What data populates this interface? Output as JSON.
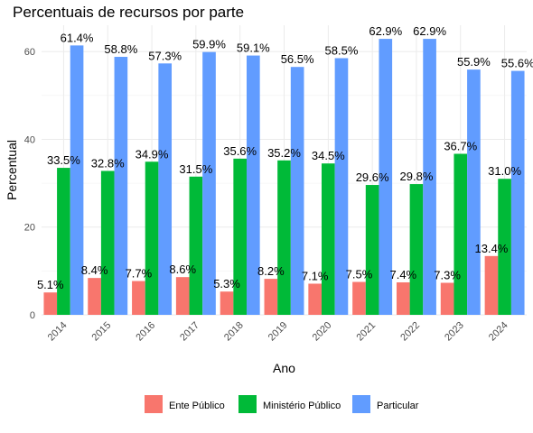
{
  "chart_data": {
    "type": "bar",
    "title": "Percentuais de recursos por parte",
    "xlabel": "Ano",
    "ylabel": "Percentual",
    "ylim": [
      0,
      66
    ],
    "yticks": [
      0,
      20,
      40,
      60
    ],
    "grid": true,
    "legend_position": "bottom",
    "categories": [
      "2014",
      "2015",
      "2016",
      "2017",
      "2018",
      "2019",
      "2020",
      "2021",
      "2022",
      "2023",
      "2024"
    ],
    "series": [
      {
        "name": "Ente Público",
        "color": "#F8766D",
        "values": [
          5.1,
          8.4,
          7.7,
          8.6,
          5.3,
          8.2,
          7.1,
          7.5,
          7.4,
          7.3,
          13.4
        ],
        "labels": [
          "5.1%",
          "8.4%",
          "7.7%",
          "8.6%",
          "5.3%",
          "8.2%",
          "7.1%",
          "7.5%",
          "7.4%",
          "7.3%",
          "13.4%"
        ]
      },
      {
        "name": "Ministério Público",
        "color": "#00BA38",
        "values": [
          33.5,
          32.8,
          34.9,
          31.5,
          35.6,
          35.2,
          34.5,
          29.6,
          29.8,
          36.7,
          31.0
        ],
        "labels": [
          "33.5%",
          "32.8%",
          "34.9%",
          "31.5%",
          "35.6%",
          "35.2%",
          "34.5%",
          "29.6%",
          "29.8%",
          "36.7%",
          "31.0%"
        ]
      },
      {
        "name": "Particular",
        "color": "#619CFF",
        "values": [
          61.4,
          58.8,
          57.3,
          59.9,
          59.1,
          56.5,
          58.5,
          62.9,
          62.9,
          55.9,
          55.6
        ],
        "labels": [
          "61.4%",
          "58.8%",
          "57.3%",
          "59.9%",
          "59.1%",
          "56.5%",
          "58.5%",
          "62.9%",
          "62.9%",
          "55.9%",
          "55.6%"
        ]
      }
    ]
  }
}
